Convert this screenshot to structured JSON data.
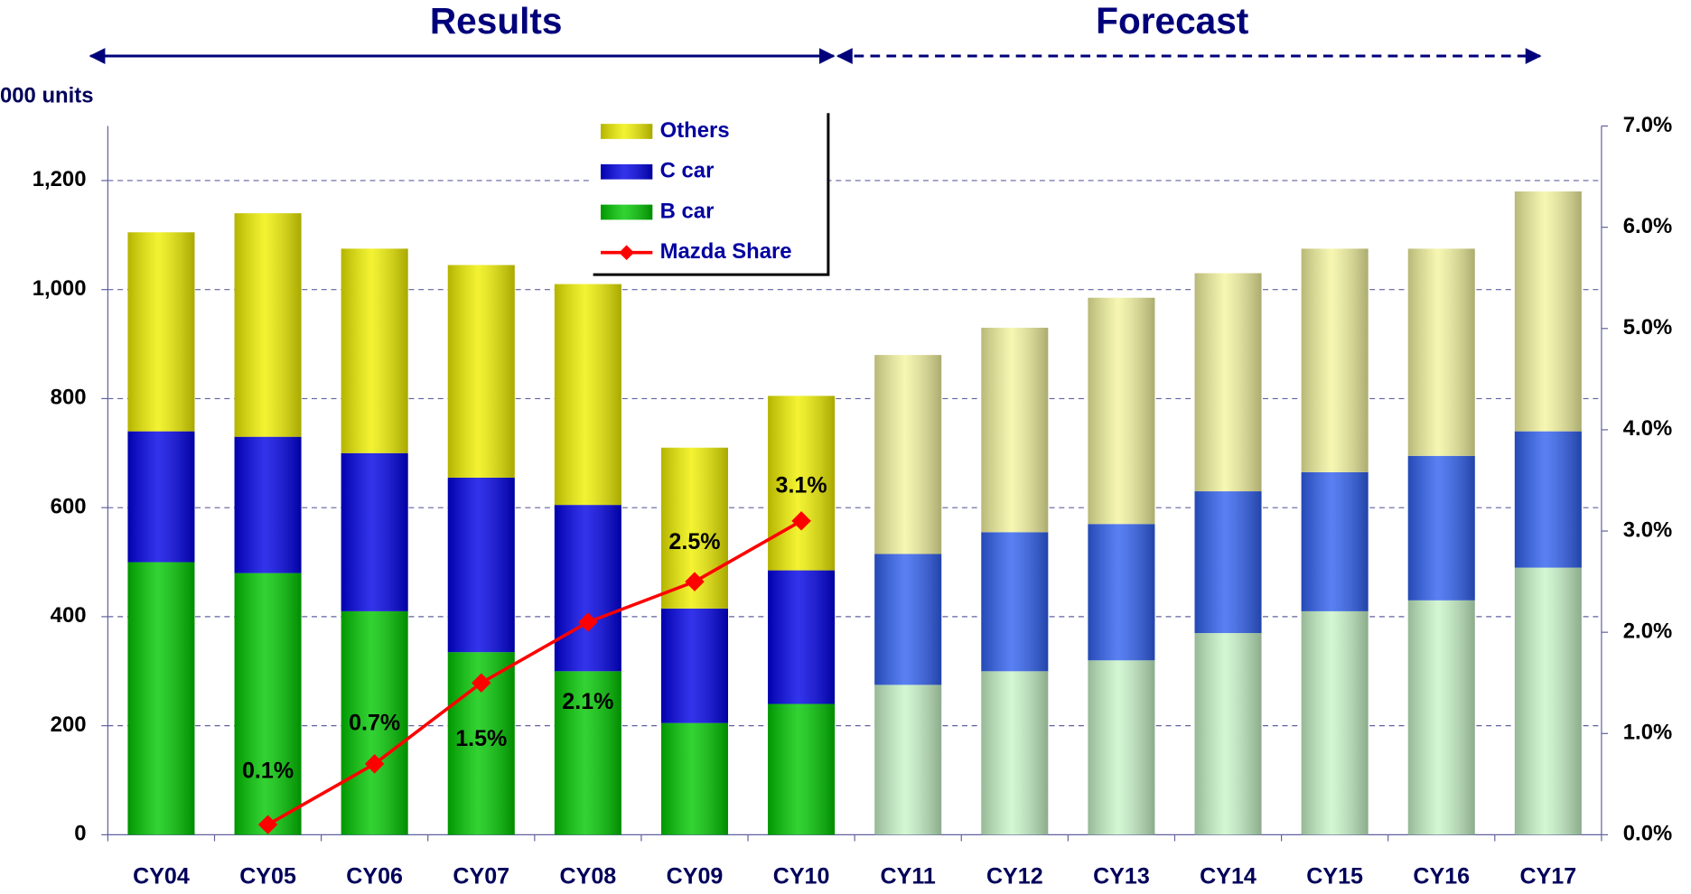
{
  "chart_data": {
    "type": "stacked_bar_line",
    "headers": [
      "Results",
      "Forecast"
    ],
    "y_axis_label": "000 units",
    "categories": [
      "CY04",
      "CY05",
      "CY06",
      "CY07",
      "CY08",
      "CY09",
      "CY10",
      "CY11",
      "CY12",
      "CY13",
      "CY14",
      "CY15",
      "CY16",
      "CY17"
    ],
    "series": [
      {
        "name": "B car",
        "colors": [
          "#00c800",
          "#00c800",
          "#00c800",
          "#00c800",
          "#00c800",
          "#00c800",
          "#00c800",
          "#c8f5c8",
          "#c8f5c8",
          "#c8f5c8",
          "#c8f5c8",
          "#c8f5c8",
          "#c8f5c8",
          "#c8f5c8"
        ],
        "values": [
          500,
          480,
          410,
          335,
          300,
          205,
          240,
          275,
          300,
          320,
          370,
          410,
          430,
          490
        ]
      },
      {
        "name": "C car",
        "colors": [
          "#0000e6",
          "#0000e6",
          "#0000e6",
          "#0000e6",
          "#0000e6",
          "#0000e6",
          "#0000e6",
          "#3060f0",
          "#3060f0",
          "#3060f0",
          "#3060f0",
          "#3060f0",
          "#3060f0",
          "#3060f0"
        ],
        "values": [
          240,
          250,
          290,
          320,
          305,
          210,
          245,
          240,
          255,
          250,
          260,
          255,
          265,
          250
        ]
      },
      {
        "name": "Others",
        "colors": [
          "#f0f000",
          "#f0f000",
          "#f0f000",
          "#f0f000",
          "#f0f000",
          "#f0f000",
          "#f0f000",
          "#f5f5a0",
          "#f5f5a0",
          "#f5f5a0",
          "#f5f5a0",
          "#f5f5a0",
          "#f5f5a0",
          "#f5f5a0"
        ],
        "values": [
          365,
          410,
          375,
          390,
          405,
          295,
          320,
          365,
          375,
          415,
          400,
          410,
          380,
          440
        ]
      },
      {
        "name": "Mazda Share",
        "type": "line",
        "axis": "y2",
        "color": "#ff0000",
        "values": [
          null,
          0.1,
          0.7,
          1.5,
          2.1,
          2.5,
          3.1,
          null,
          null,
          null,
          null,
          null,
          null,
          null
        ],
        "value_labels": [
          null,
          "0.1%",
          "0.7%",
          "1.5%",
          "2.1%",
          "2.5%",
          "3.1%",
          null,
          null,
          null,
          null,
          null,
          null,
          null
        ]
      }
    ],
    "ylim": [
      0,
      1300
    ],
    "yticks": [
      0,
      200,
      400,
      600,
      800,
      {
        "value": 1000,
        "label": "1,000"
      },
      {
        "value": 1200,
        "label": "1,200"
      }
    ],
    "y2lim": [
      0,
      7
    ],
    "y2ticks": [
      {
        "value": 0,
        "label": "0.0%"
      },
      {
        "value": 1,
        "label": "1.0%"
      },
      {
        "value": 2,
        "label": "2.0%"
      },
      {
        "value": 3,
        "label": "3.0%"
      },
      {
        "value": 4,
        "label": "4.0%"
      },
      {
        "value": 5,
        "label": "5.0%"
      },
      {
        "value": 6,
        "label": "6.0%"
      },
      {
        "value": 7,
        "label": "7.0%"
      }
    ],
    "grid": true,
    "legend": "top-center"
  }
}
